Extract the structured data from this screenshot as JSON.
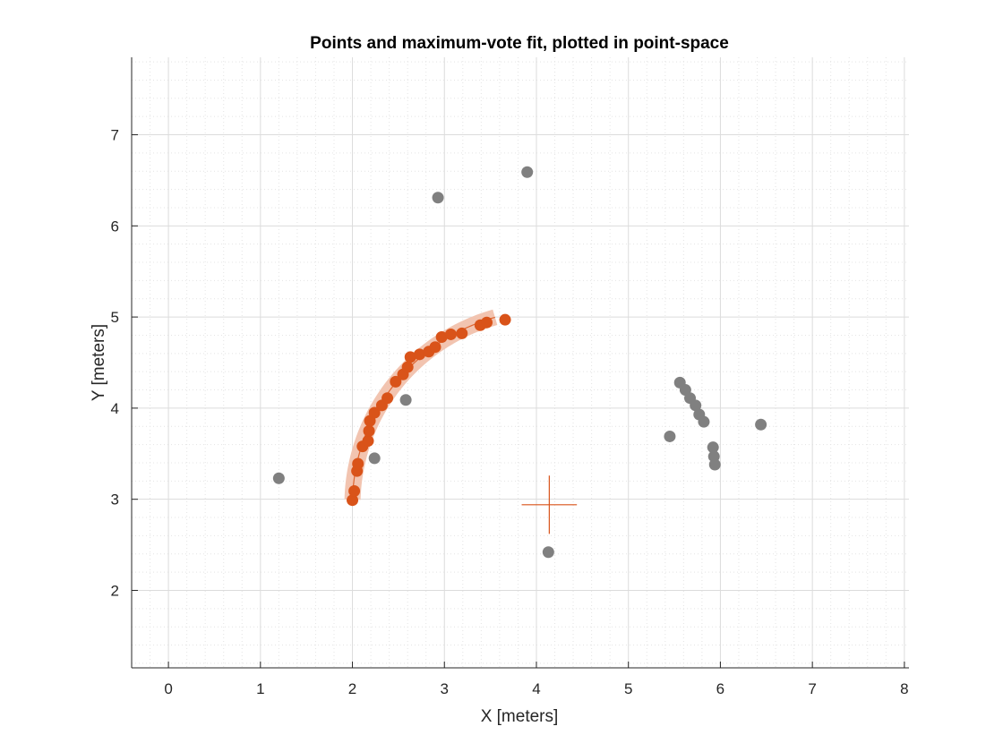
{
  "chart_data": {
    "type": "scatter",
    "title": "Points and maximum-vote fit, plotted in point-space",
    "xlabel": "X [meters]",
    "ylabel": "Y [meters]",
    "xlim": [
      -0.4,
      8.05
    ],
    "ylim": [
      1.15,
      7.85
    ],
    "xticks": [
      0,
      1,
      2,
      3,
      4,
      5,
      6,
      7,
      8
    ],
    "yticks": [
      2,
      3,
      4,
      5,
      6,
      7
    ],
    "grid": true,
    "minor_grid": true,
    "colors": {
      "inlier": "#d95319",
      "outlier": "#808080",
      "fit_band": "#f2c4b0",
      "fit_line": "#d95319",
      "grid_major": "#dcdcdc",
      "grid_minor": "#e4e4e4",
      "axis": "#262626"
    },
    "series": [
      {
        "role": "outliers",
        "points": [
          [
            1.2,
            3.23
          ],
          [
            2.24,
            3.45
          ],
          [
            2.58,
            4.09
          ],
          [
            2.93,
            6.31
          ],
          [
            3.9,
            6.59
          ],
          [
            4.13,
            2.42
          ],
          [
            5.45,
            3.69
          ],
          [
            5.56,
            4.28
          ],
          [
            5.62,
            4.2
          ],
          [
            5.67,
            4.11
          ],
          [
            5.73,
            4.03
          ],
          [
            5.77,
            3.93
          ],
          [
            5.82,
            3.85
          ],
          [
            5.92,
            3.57
          ],
          [
            5.93,
            3.47
          ],
          [
            5.94,
            3.38
          ],
          [
            6.44,
            3.82
          ]
        ]
      },
      {
        "role": "inliers",
        "points": [
          [
            2.0,
            2.99
          ],
          [
            2.02,
            3.09
          ],
          [
            2.05,
            3.31
          ],
          [
            2.06,
            3.39
          ],
          [
            2.11,
            3.58
          ],
          [
            2.17,
            3.64
          ],
          [
            2.18,
            3.75
          ],
          [
            2.19,
            3.86
          ],
          [
            2.24,
            3.95
          ],
          [
            2.32,
            4.03
          ],
          [
            2.38,
            4.11
          ],
          [
            2.47,
            4.29
          ],
          [
            2.55,
            4.37
          ],
          [
            2.6,
            4.45
          ],
          [
            2.63,
            4.56
          ],
          [
            2.73,
            4.59
          ],
          [
            2.83,
            4.62
          ],
          [
            2.9,
            4.67
          ],
          [
            2.97,
            4.78
          ],
          [
            3.07,
            4.81
          ],
          [
            3.19,
            4.82
          ],
          [
            3.39,
            4.91
          ],
          [
            3.46,
            4.94
          ],
          [
            3.66,
            4.97
          ]
        ]
      }
    ],
    "fit_arc": {
      "center": [
        4.14,
        2.94
      ],
      "radius": 2.14,
      "start_deg": 178.5,
      "end_deg": 106
    },
    "marker_cross": {
      "x": 4.14,
      "y": 2.94,
      "half_width": 0.3,
      "half_height": 0.32
    }
  }
}
